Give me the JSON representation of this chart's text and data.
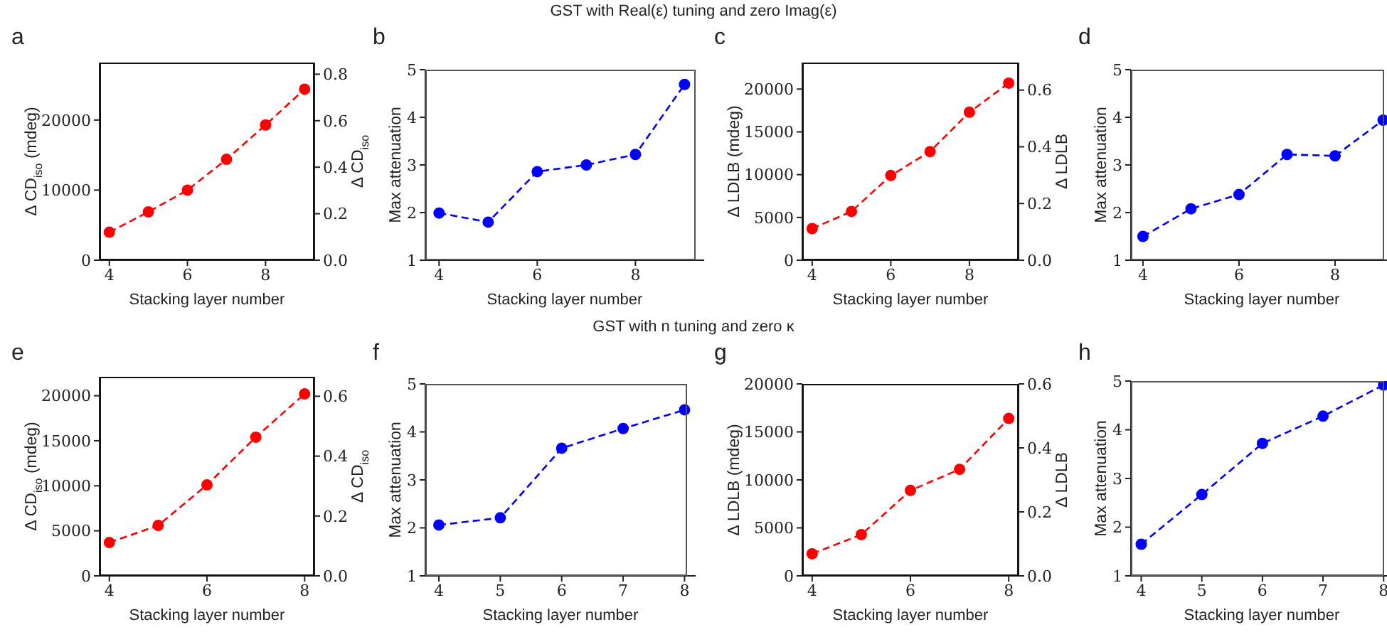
{
  "chart_data": [
    {
      "type": "line",
      "title": "a",
      "annotations": [
        "GST with Real(ε) tuning and zero Imag(ε)"
      ],
      "xlabel": "Stacking layer number",
      "ylabel": "Δ CD$_{iso}$ (mdeg)",
      "y2label": "Δ CD$_{iso}$",
      "x": [
        4,
        5,
        6,
        7,
        8,
        9
      ],
      "series": [
        {
          "color": "#ff0000",
          "values": [
            4000,
            6900,
            10000,
            14400,
            19300,
            24400
          ]
        }
      ],
      "xlim": [
        3.75,
        9.25
      ],
      "xticks": [
        4,
        6,
        8
      ],
      "ylim": [
        0,
        28200
      ],
      "yticks": [
        0,
        10000,
        20000
      ],
      "y2lim": [
        0,
        0.85
      ],
      "y2ticks": [
        {
          "value": 0,
          "label": "0.0"
        },
        {
          "value": 0.2,
          "label": "0.2"
        },
        {
          "value": 0.4,
          "label": "0.4"
        },
        {
          "value": 0.6,
          "label": "0.6"
        },
        {
          "value": 0.8,
          "label": "0.8"
        }
      ],
      "marker": "circle",
      "line_style": "dashed"
    },
    {
      "type": "line",
      "title": "b",
      "xlabel": "Stacking layer number",
      "ylabel": "Max attenuation",
      "x": [
        4,
        5,
        6,
        7,
        8,
        9
      ],
      "series": [
        {
          "color": "#0000ff",
          "values": [
            1.99,
            1.8,
            2.86,
            3.0,
            3.22,
            4.69
          ]
        }
      ],
      "xlim": [
        3.72,
        9.4
      ],
      "xticks": [
        4,
        6,
        8
      ],
      "ylim": [
        1,
        5
      ],
      "yticks": [
        1,
        2,
        3,
        4,
        5
      ],
      "marker": "circle",
      "line_style": "dashed"
    },
    {
      "type": "line",
      "title": "c",
      "xlabel": "Stacking layer number",
      "ylabel": "Δ LDLB (mdeg)",
      "y2label": "Δ LDLB",
      "x": [
        4,
        5,
        6,
        7,
        8,
        9
      ],
      "series": [
        {
          "color": "#ff0000",
          "values": [
            3700,
            5700,
            9900,
            12700,
            17300,
            20700
          ]
        }
      ],
      "xlim": [
        3.75,
        9.25
      ],
      "xticks": [
        4,
        6,
        8
      ],
      "ylim": [
        0,
        23100
      ],
      "yticks": [
        0,
        5000,
        10000,
        15000,
        20000
      ],
      "y2lim": [
        0,
        0.697
      ],
      "y2ticks": [
        {
          "value": 0,
          "label": "0.0"
        },
        {
          "value": 0.2,
          "label": "0.2"
        },
        {
          "value": 0.4,
          "label": "0.4"
        },
        {
          "value": 0.6,
          "label": "0.6"
        }
      ],
      "marker": "circle",
      "line_style": "dashed"
    },
    {
      "type": "line",
      "title": "d",
      "xlabel": "Stacking layer number",
      "ylabel": "Max attenuation",
      "x": [
        4,
        5,
        6,
        7,
        8,
        9
      ],
      "series": [
        {
          "color": "#0000ff",
          "values": [
            1.5,
            2.08,
            2.38,
            3.22,
            3.19,
            3.94
          ]
        }
      ],
      "xlim": [
        3.75,
        9.2
      ],
      "xticks": [
        4,
        6,
        8
      ],
      "ylim": [
        1,
        5
      ],
      "yticks": [
        1,
        2,
        3,
        4,
        5
      ],
      "marker": "circle",
      "line_style": "dashed"
    },
    {
      "type": "line",
      "title": "e",
      "annotations": [
        "GST with n tuning and zero κ"
      ],
      "xlabel": "Stacking layer number",
      "ylabel": "Δ CD$_{iso}$ (mdeg)",
      "y2label": "Δ CD$_{iso}$",
      "x": [
        4,
        5,
        6,
        7,
        8
      ],
      "series": [
        {
          "color": "#ff0000",
          "values": [
            3700,
            5600,
            10100,
            15400,
            20200
          ]
        }
      ],
      "xlim": [
        3.8,
        8.2
      ],
      "xticks": [
        4,
        6,
        8
      ],
      "ylim": [
        0,
        22100
      ],
      "yticks": [
        0,
        5000,
        10000,
        15000,
        20000
      ],
      "y2lim": [
        0,
        0.665
      ],
      "y2ticks": [
        {
          "value": 0,
          "label": "0.0"
        },
        {
          "value": 0.2,
          "label": "0.2"
        },
        {
          "value": 0.4,
          "label": "0.4"
        },
        {
          "value": 0.6,
          "label": "0.6"
        }
      ],
      "marker": "circle",
      "line_style": "dashed"
    },
    {
      "type": "line",
      "title": "f",
      "xlabel": "Stacking layer number",
      "ylabel": "Max attenuation",
      "x": [
        4,
        5,
        6,
        7,
        8
      ],
      "series": [
        {
          "color": "#0000ff",
          "values": [
            2.06,
            2.21,
            3.66,
            4.07,
            4.46
          ]
        }
      ],
      "xlim": [
        3.78,
        8.18
      ],
      "xticks": [
        4,
        5,
        6,
        7,
        8
      ],
      "ylim": [
        1,
        5
      ],
      "yticks": [
        1,
        2,
        3,
        4,
        5
      ],
      "marker": "circle",
      "line_style": "dashed"
    },
    {
      "type": "line",
      "title": "g",
      "xlabel": "Stacking layer number",
      "ylabel": "Δ LDLB (mdeg)",
      "y2label": "Δ LDLB",
      "x": [
        4,
        5,
        6,
        7,
        8
      ],
      "series": [
        {
          "color": "#ff0000",
          "values": [
            2300,
            4300,
            8900,
            11100,
            16400
          ]
        }
      ],
      "xlim": [
        3.8,
        8.2
      ],
      "xticks": [
        4,
        6,
        8
      ],
      "ylim": [
        0,
        20000
      ],
      "yticks": [
        0,
        5000,
        10000,
        15000,
        20000
      ],
      "y2lim": [
        0,
        0.6
      ],
      "y2ticks": [
        {
          "value": 0,
          "label": "0.0"
        },
        {
          "value": 0.2,
          "label": "0.2"
        },
        {
          "value": 0.4,
          "label": "0.4"
        },
        {
          "value": 0.6,
          "label": "0.6"
        }
      ],
      "marker": "circle",
      "line_style": "dashed"
    },
    {
      "type": "line",
      "title": "h",
      "xlabel": "Stacking layer number",
      "ylabel": "Max attenuation",
      "x": [
        4,
        5,
        6,
        7,
        8
      ],
      "series": [
        {
          "color": "#0000ff",
          "values": [
            1.65,
            2.67,
            3.72,
            4.28,
            4.92
          ]
        }
      ],
      "xlim": [
        3.83,
        8.15
      ],
      "xticks": [
        4,
        5,
        6,
        7,
        8
      ],
      "ylim": [
        1,
        5
      ],
      "yticks": [
        1,
        2,
        3,
        4,
        5
      ],
      "marker": "circle",
      "line_style": "dashed"
    }
  ]
}
